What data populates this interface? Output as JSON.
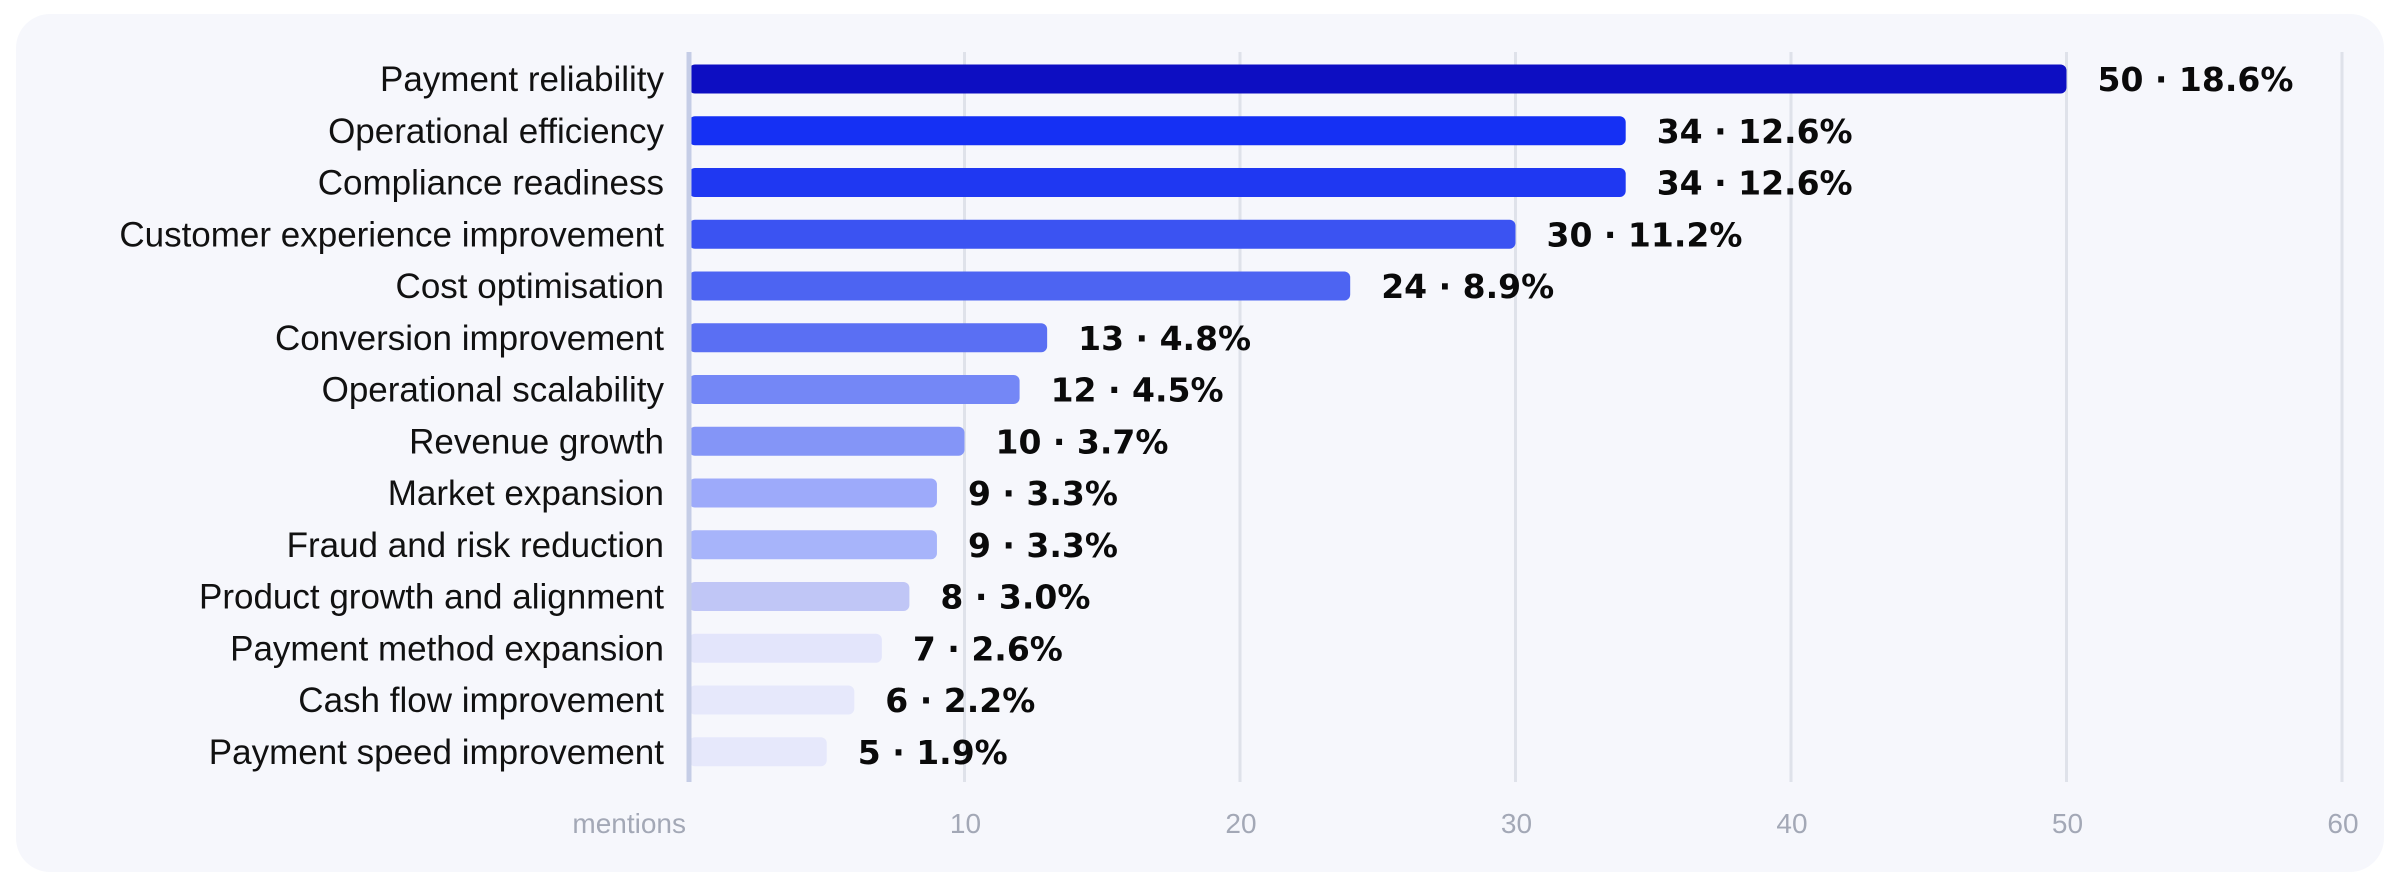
{
  "chart_data": {
    "type": "bar",
    "orientation": "horizontal",
    "categories": [
      "Payment reliability",
      "Operational efficiency",
      "Compliance readiness",
      "Customer experience improvement",
      "Cost optimisation",
      "Conversion improvement",
      "Operational scalability",
      "Revenue growth",
      "Market expansion",
      "Fraud and risk reduction",
      "Product growth and alignment",
      "Payment method expansion",
      "Cash flow improvement",
      "Payment speed improvement"
    ],
    "values": [
      50,
      34,
      34,
      30,
      24,
      13,
      12,
      10,
      9,
      9,
      8,
      7,
      6,
      5
    ],
    "data_labels": [
      "50 · 18.6%",
      "34 · 12.6%",
      "34 · 12.6%",
      "30 · 11.2%",
      "24 · 8.9%",
      "13 · 4.8%",
      "12 · 4.5%",
      "10 · 3.7%",
      "9 · 3.3%",
      "9 · 3.3%",
      "8 · 3.0%",
      "7 · 2.6%",
      "6 · 2.2%",
      "5 · 1.9%"
    ],
    "bar_colors": [
      "#0d0ec2",
      "#1530f4",
      "#1f38f2",
      "#3b53f2",
      "#4d64f2",
      "#5a6ff3",
      "#7487f6",
      "#8495f7",
      "#9daafa",
      "#a7b4fa",
      "#c0c6f6",
      "#e3e5fb",
      "#e6e8fb",
      "#e6e8fb"
    ],
    "xlabel": "mentions",
    "xlim": [
      0,
      60
    ],
    "xticks": [
      10,
      20,
      30,
      40,
      50,
      60
    ],
    "grid": true
  },
  "colors": {
    "background": "#f6f7fc",
    "grid": "#dfe2ea",
    "axis": "#c5cde6",
    "tick_text": "#a3a8b6"
  }
}
